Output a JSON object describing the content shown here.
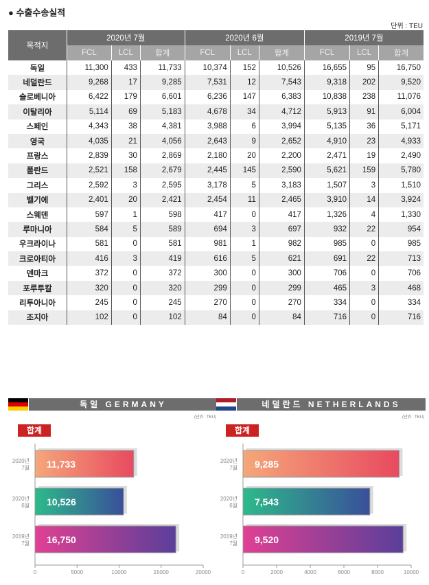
{
  "title": "● 수출수송실적",
  "unit": "단위 : TEU",
  "table": {
    "dest_header": "목적지",
    "groups": [
      "2020년 7월",
      "2020년 6월",
      "2019년 7월"
    ],
    "subheaders": [
      "FCL",
      "LCL",
      "합계"
    ],
    "rows": [
      [
        "독일",
        "11,300",
        "433",
        "11,733",
        "10,374",
        "152",
        "10,526",
        "16,655",
        "95",
        "16,750"
      ],
      [
        "네덜란드",
        "9,268",
        "17",
        "9,285",
        "7,531",
        "12",
        "7,543",
        "9,318",
        "202",
        "9,520"
      ],
      [
        "슬로베니아",
        "6,422",
        "179",
        "6,601",
        "6,236",
        "147",
        "6,383",
        "10,838",
        "238",
        "11,076"
      ],
      [
        "이탈리아",
        "5,114",
        "69",
        "5,183",
        "4,678",
        "34",
        "4,712",
        "5,913",
        "91",
        "6,004"
      ],
      [
        "스페인",
        "4,343",
        "38",
        "4,381",
        "3,988",
        "6",
        "3,994",
        "5,135",
        "36",
        "5,171"
      ],
      [
        "영국",
        "4,035",
        "21",
        "4,056",
        "2,643",
        "9",
        "2,652",
        "4,910",
        "23",
        "4,933"
      ],
      [
        "프랑스",
        "2,839",
        "30",
        "2,869",
        "2,180",
        "20",
        "2,200",
        "2,471",
        "19",
        "2,490"
      ],
      [
        "폴란드",
        "2,521",
        "158",
        "2,679",
        "2,445",
        "145",
        "2,590",
        "5,621",
        "159",
        "5,780"
      ],
      [
        "그리스",
        "2,592",
        "3",
        "2,595",
        "3,178",
        "5",
        "3,183",
        "1,507",
        "3",
        "1,510"
      ],
      [
        "벨기에",
        "2,401",
        "20",
        "2,421",
        "2,454",
        "11",
        "2,465",
        "3,910",
        "14",
        "3,924"
      ],
      [
        "스웨덴",
        "597",
        "1",
        "598",
        "417",
        "0",
        "417",
        "1,326",
        "4",
        "1,330"
      ],
      [
        "루마니아",
        "584",
        "5",
        "589",
        "694",
        "3",
        "697",
        "932",
        "22",
        "954"
      ],
      [
        "우크라이나",
        "581",
        "0",
        "581",
        "981",
        "1",
        "982",
        "985",
        "0",
        "985"
      ],
      [
        "크로아티아",
        "416",
        "3",
        "419",
        "616",
        "5",
        "621",
        "691",
        "22",
        "713"
      ],
      [
        "덴마크",
        "372",
        "0",
        "372",
        "300",
        "0",
        "300",
        "706",
        "0",
        "706"
      ],
      [
        "포루투칼",
        "320",
        "0",
        "320",
        "299",
        "0",
        "299",
        "465",
        "3",
        "468"
      ],
      [
        "리투아니아",
        "245",
        "0",
        "245",
        "270",
        "0",
        "270",
        "334",
        "0",
        "334"
      ],
      [
        "조지아",
        "102",
        "0",
        "102",
        "84",
        "0",
        "84",
        "716",
        "0",
        "716"
      ]
    ]
  },
  "chart_data": [
    {
      "type": "bar",
      "title": "독일 GERMANY",
      "unit": "(단위 : TEU)",
      "tag": "합계",
      "categories": [
        "2020년 7월",
        "2020년 6월",
        "2019년 7월"
      ],
      "values": [
        11733,
        10526,
        16750
      ],
      "labels": [
        "11,733",
        "10,526",
        "16,750"
      ],
      "xlim": [
        0,
        20000
      ],
      "ticks": [
        0,
        5000,
        10000,
        15000,
        20000
      ],
      "flag": [
        "#000000",
        "#dd0000",
        "#ffce00"
      ]
    },
    {
      "type": "bar",
      "title": "네덜란드 NETHERLANDS",
      "unit": "(단위 : TEU)",
      "tag": "합계",
      "categories": [
        "2020년 7월",
        "2020년 6월",
        "2019년 7월"
      ],
      "values": [
        9285,
        7543,
        9520
      ],
      "labels": [
        "9,285",
        "7,543",
        "9,520"
      ],
      "xlim": [
        0,
        10000
      ],
      "ticks": [
        0,
        2000,
        4000,
        6000,
        8000,
        10000
      ],
      "flag": [
        "#ae1c28",
        "#ffffff",
        "#21468b"
      ]
    }
  ],
  "bar_gradients": [
    [
      "#f5a77a",
      "#e84a5f"
    ],
    [
      "#2dba8a",
      "#3a4f9a"
    ],
    [
      "#e04093",
      "#5a3f9a"
    ]
  ]
}
